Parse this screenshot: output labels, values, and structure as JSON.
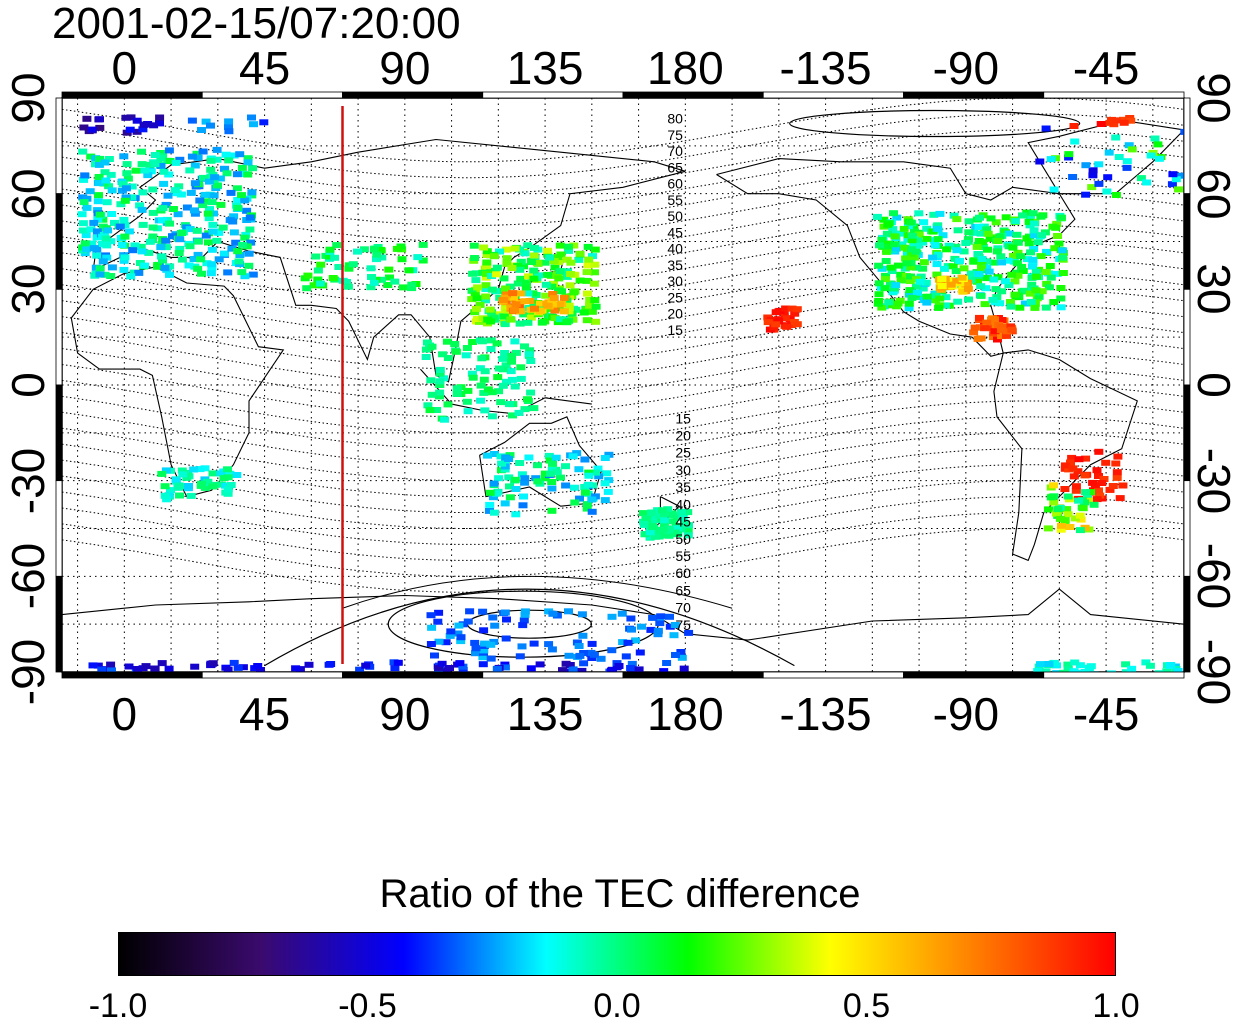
{
  "title": "2001-02-15/07:20:00",
  "x_tick_labels": [
    "0",
    "45",
    "90",
    "135",
    "180",
    "-135",
    "-90",
    "-45"
  ],
  "y_tick_labels": [
    "90",
    "60",
    "30",
    "0",
    "-30",
    "-60",
    "-90"
  ],
  "contour_labels_north": [
    "80",
    "75",
    "70",
    "65",
    "60",
    "55",
    "50",
    "45",
    "40",
    "35",
    "30",
    "25",
    "20",
    "15"
  ],
  "contour_labels_south": [
    "15",
    "20",
    "25",
    "30",
    "35",
    "40",
    "45",
    "50",
    "55",
    "60",
    "65",
    "70",
    "75"
  ],
  "colorbar": {
    "title": "Ratio of the TEC difference",
    "tick_labels": [
      "-1.0",
      "-0.5",
      "0.0",
      "0.5",
      "1.0"
    ],
    "range": [
      -1.0,
      1.0
    ],
    "colormap": [
      "#000000",
      "#3a0a6e",
      "#0000ff",
      "#00ffff",
      "#00ff00",
      "#ffff00",
      "#ff8000",
      "#ff0000"
    ]
  },
  "map": {
    "lon_range": [
      -20,
      340
    ],
    "lat_range": [
      -90,
      90
    ],
    "marker_line_lon": 70,
    "marker_line_color": "#d01010"
  }
}
